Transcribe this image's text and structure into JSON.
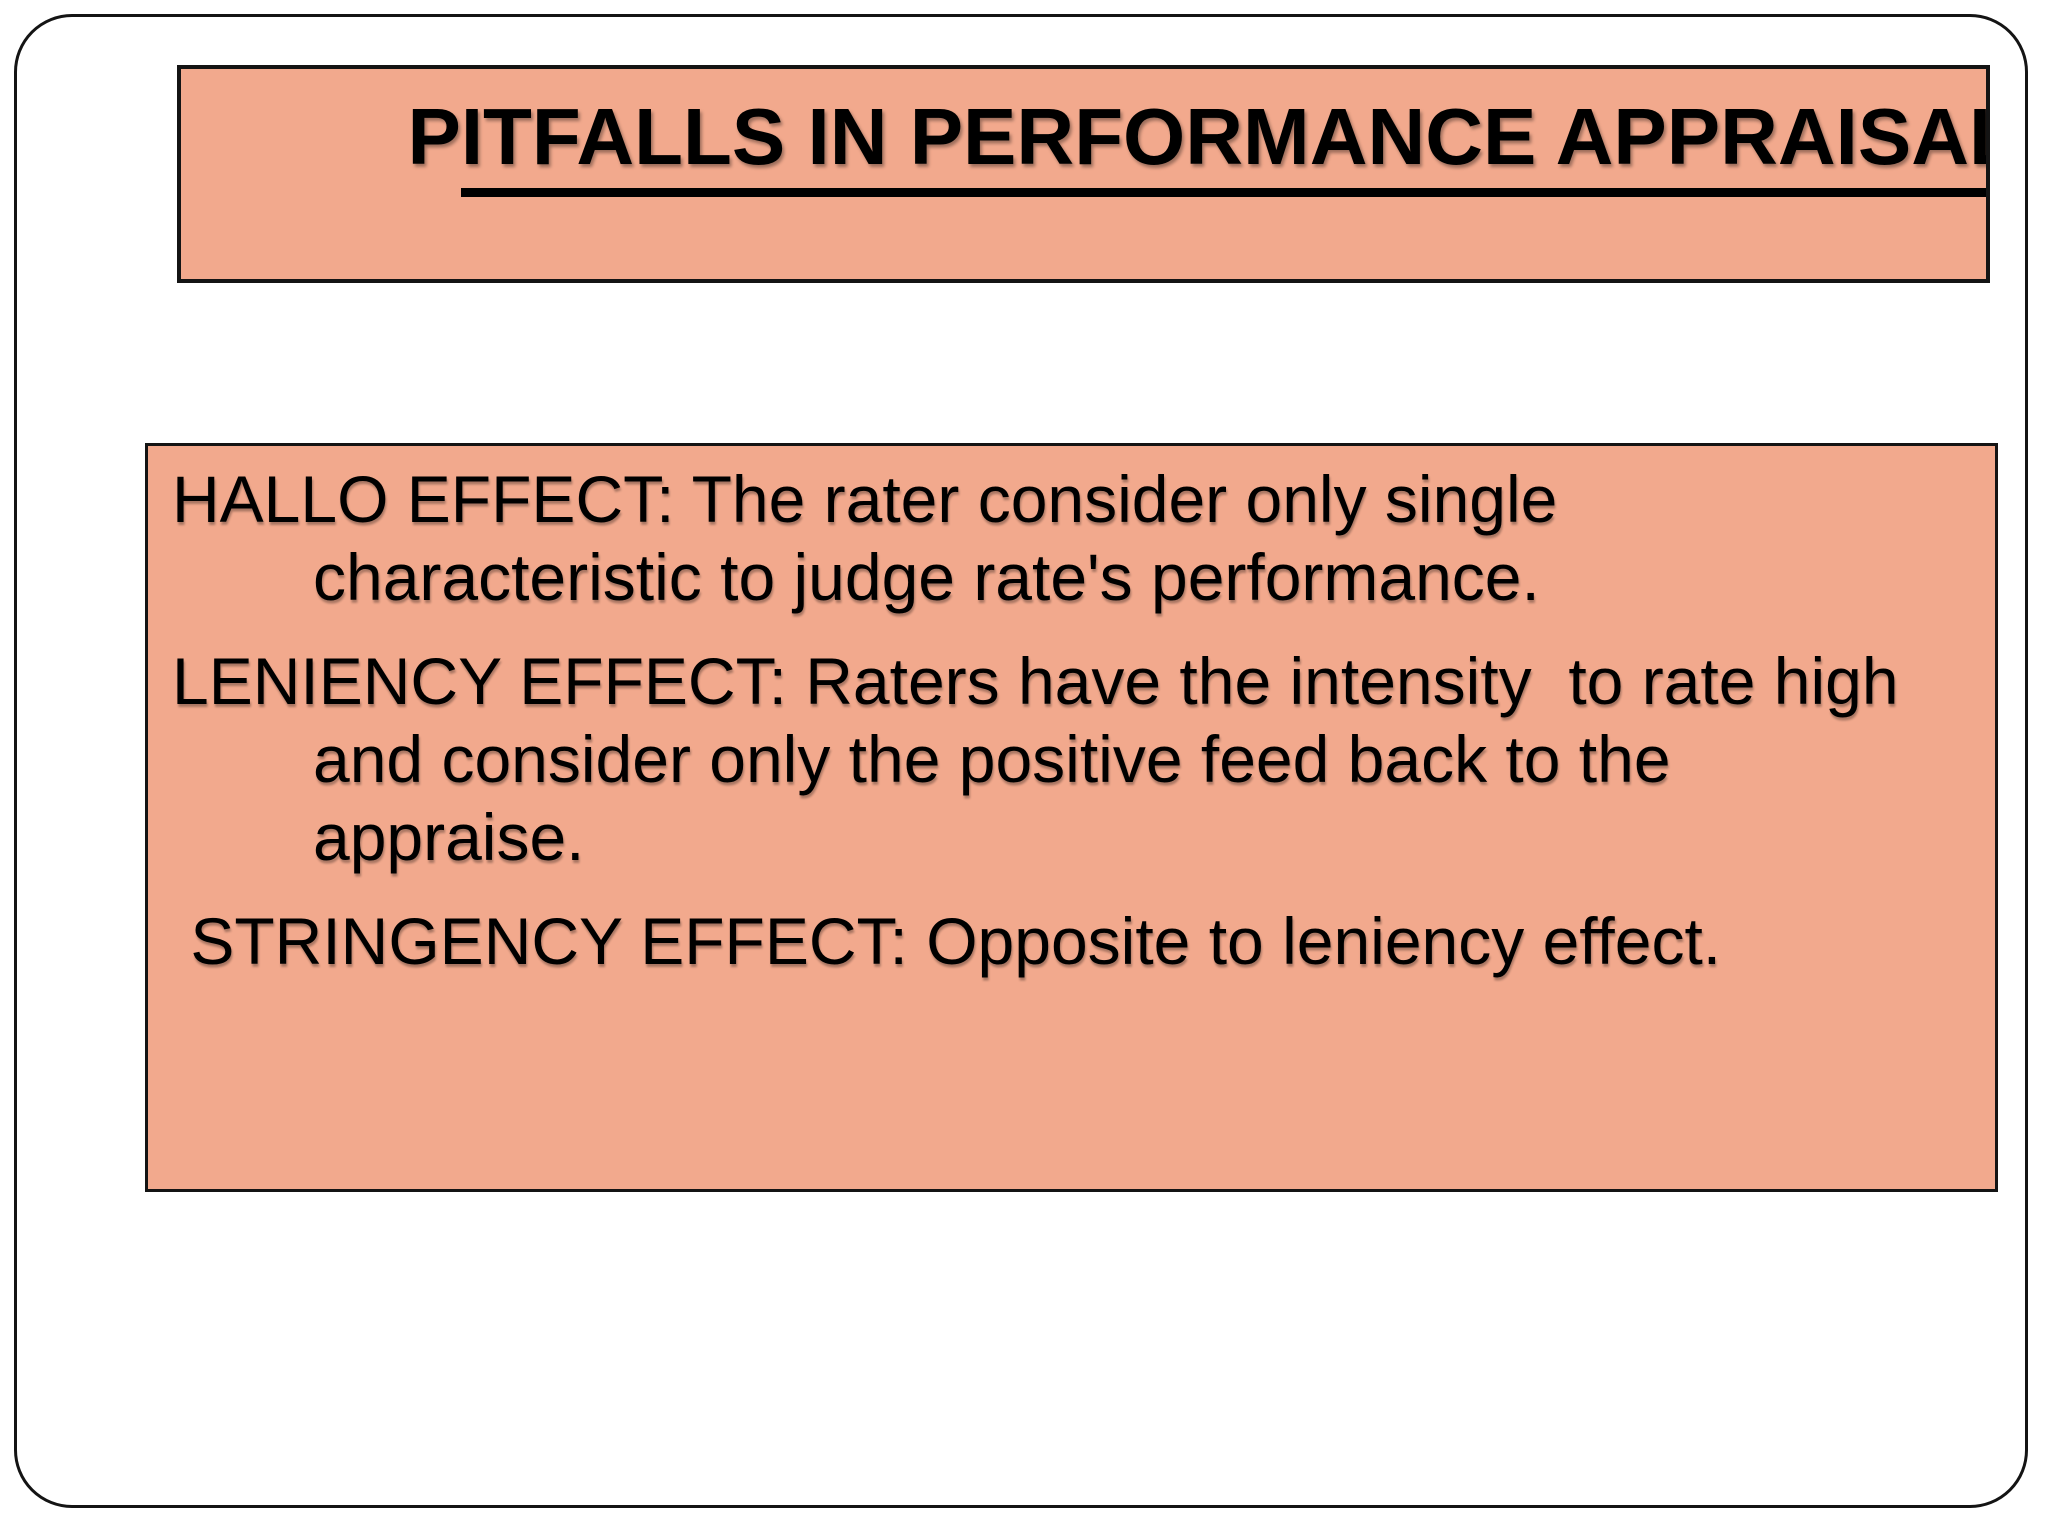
{
  "slide": {
    "title": {
      "prefix": "P",
      "underlined": "ITFALLS IN PERFORMANCE APPRAISAL"
    },
    "content": {
      "paragraphs": [
        {
          "lines": [
            {
              "text": "HALLO EFFECT: The rater consider only single"
            },
            {
              "text": "characteristic to judge rate's performance."
            }
          ]
        },
        {
          "lines": [
            {
              "text": "LENIENCY EFFECT: Raters have the intensity  to rate high"
            },
            {
              "text": "and consider only the positive feed back to the"
            },
            {
              "text": "appraise."
            }
          ]
        },
        {
          "lines": [
            {
              "text": " STRINGENCY EFFECT: Opposite to leniency effect."
            }
          ]
        }
      ]
    },
    "colors": {
      "box_fill": "#F2A98D",
      "border": "#141414",
      "text": "#000000",
      "background": "#FFFFFF"
    }
  }
}
